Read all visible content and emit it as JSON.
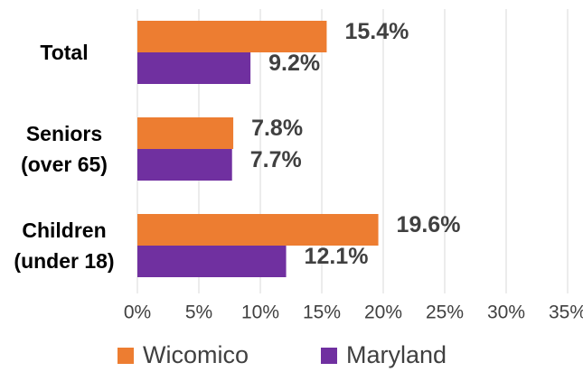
{
  "chart_data": {
    "type": "bar",
    "orientation": "horizontal",
    "categories": [
      "Total",
      "Seniors\n(over 65)",
      "Children\n(under 18)"
    ],
    "series": [
      {
        "name": "Wicomico",
        "color": "#ed7d31",
        "values": [
          15.4,
          7.8,
          19.6
        ],
        "value_labels": [
          "15.4%",
          "7.8%",
          "19.6%"
        ]
      },
      {
        "name": "Maryland",
        "color": "#7030a0",
        "values": [
          9.2,
          7.7,
          12.1
        ],
        "value_labels": [
          "9.2%",
          "7.7%",
          "12.1%"
        ]
      }
    ],
    "xlim": [
      0,
      35
    ],
    "xticks": [
      {
        "value": 0,
        "label": "0%"
      },
      {
        "value": 5,
        "label": "5%"
      },
      {
        "value": 10,
        "label": "10%"
      },
      {
        "value": 15,
        "label": "15%"
      },
      {
        "value": 20,
        "label": "20%"
      },
      {
        "value": 25,
        "label": "25%"
      },
      {
        "value": 30,
        "label": "30%"
      },
      {
        "value": 35,
        "label": "35%"
      }
    ],
    "grid": true,
    "legend": "bottom"
  }
}
